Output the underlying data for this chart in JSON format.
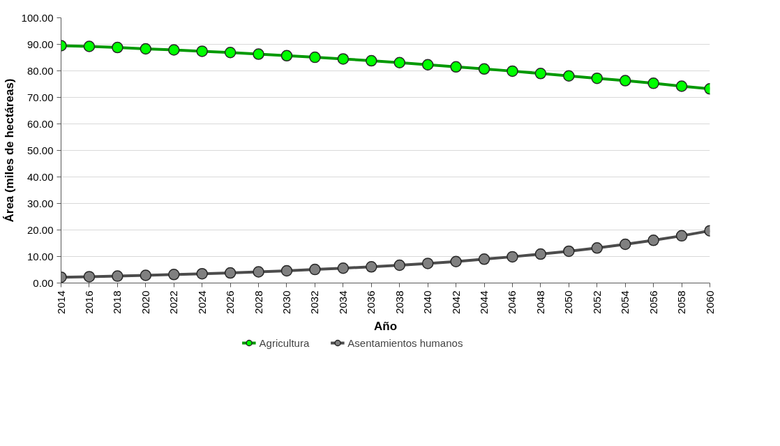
{
  "chart_data": {
    "type": "line",
    "xlabel": "Año",
    "ylabel": "Área (miles de hectáreas)",
    "x": [
      2014,
      2016,
      2018,
      2020,
      2022,
      2024,
      2026,
      2028,
      2030,
      2032,
      2034,
      2036,
      2038,
      2040,
      2042,
      2044,
      2046,
      2048,
      2050,
      2052,
      2054,
      2056,
      2058,
      2060
    ],
    "series": [
      {
        "name": "Agricultura",
        "color": "#00ff00",
        "values": [
          89.5,
          89.2,
          88.8,
          88.3,
          87.9,
          87.4,
          86.9,
          86.3,
          85.7,
          85.1,
          84.5,
          83.8,
          83.1,
          82.3,
          81.5,
          80.7,
          79.9,
          79.0,
          78.1,
          77.2,
          76.3,
          75.3,
          74.2,
          73.2
        ]
      },
      {
        "name": "Asentamientos humanos",
        "color": "#808080",
        "values": [
          2.2,
          2.4,
          2.6,
          2.9,
          3.2,
          3.5,
          3.8,
          4.2,
          4.6,
          5.1,
          5.6,
          6.1,
          6.7,
          7.4,
          8.1,
          9.0,
          9.9,
          10.9,
          12.0,
          13.2,
          14.6,
          16.1,
          17.8,
          19.7
        ]
      }
    ],
    "xlim": [
      2014,
      2060
    ],
    "xticks": [
      2014,
      2016,
      2018,
      2020,
      2022,
      2024,
      2026,
      2028,
      2030,
      2032,
      2034,
      2036,
      2038,
      2040,
      2042,
      2044,
      2046,
      2048,
      2050,
      2052,
      2054,
      2056,
      2058,
      2060
    ],
    "ylim": [
      0,
      100
    ],
    "yticks": [
      {
        "value": 0,
        "label": "0.00"
      },
      {
        "value": 10,
        "label": "10.00"
      },
      {
        "value": 20,
        "label": "20.00"
      },
      {
        "value": 30,
        "label": "30.00"
      },
      {
        "value": 40,
        "label": "40.00"
      },
      {
        "value": 50,
        "label": "50.00"
      },
      {
        "value": 60,
        "label": "60.00"
      },
      {
        "value": 70,
        "label": "70.00"
      },
      {
        "value": 80,
        "label": "80.00"
      },
      {
        "value": 90,
        "label": "90.00"
      },
      {
        "value": 100,
        "label": "100.00"
      }
    ],
    "grid": "y",
    "legend": "bottom",
    "marker": "circle",
    "line_style": "solid"
  }
}
